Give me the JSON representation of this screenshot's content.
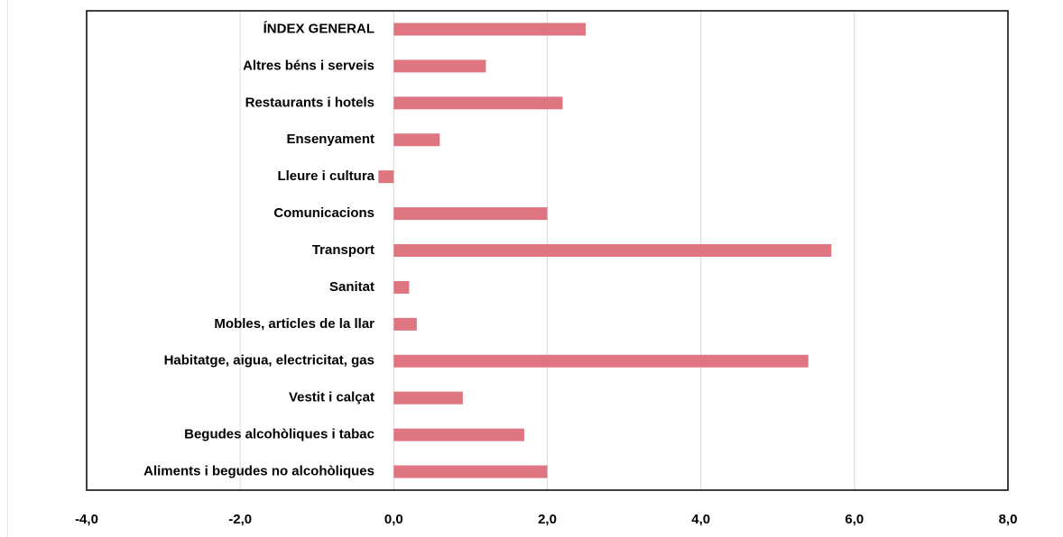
{
  "chart_data": {
    "type": "bar",
    "orientation": "horizontal",
    "categories": [
      "ÍNDEX GENERAL",
      "Altres béns i serveis",
      "Restaurants i hotels",
      "Ensenyament",
      "Lleure i cultura",
      "Comunicacions",
      "Transport",
      "Sanitat",
      "Mobles, articles de la llar",
      "Habitatge, aigua, electricitat, gas",
      "Vestit i calçat",
      "Begudes alcohòliques i tabac",
      "Aliments i begudes no alcohòliques"
    ],
    "values": [
      2.5,
      1.2,
      2.2,
      0.6,
      -0.2,
      2.0,
      5.7,
      0.2,
      0.3,
      5.4,
      0.9,
      1.7,
      2.0
    ],
    "color": "#e07582",
    "xlim": [
      -4,
      8
    ],
    "xticks": [
      {
        "value": -4,
        "label": "-4,0"
      },
      {
        "value": -2,
        "label": "-2,0"
      },
      {
        "value": 0,
        "label": "0,0"
      },
      {
        "value": 2,
        "label": "2,0"
      },
      {
        "value": 4,
        "label": "4,0"
      },
      {
        "value": 6,
        "label": "6,0"
      },
      {
        "value": 8,
        "label": "8,0"
      }
    ],
    "grid": true
  }
}
